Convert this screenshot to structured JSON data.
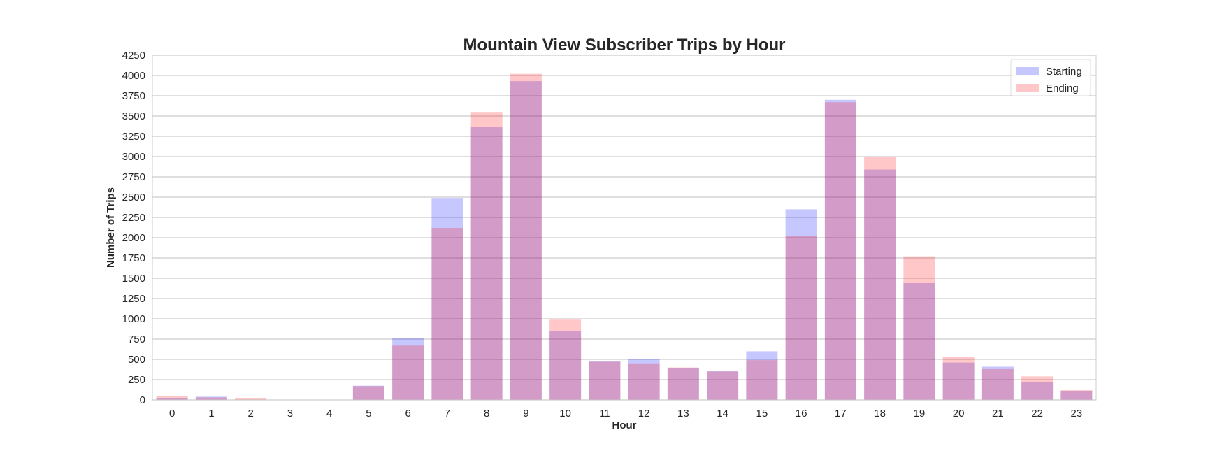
{
  "chart_data": {
    "type": "bar",
    "title": "Mountain View Subscriber Trips by Hour",
    "xlabel": "Hour",
    "ylabel": "Number of Trips",
    "categories": [
      "0",
      "1",
      "2",
      "3",
      "4",
      "5",
      "6",
      "7",
      "8",
      "9",
      "10",
      "11",
      "12",
      "13",
      "14",
      "15",
      "16",
      "17",
      "18",
      "19",
      "20",
      "21",
      "22",
      "23"
    ],
    "ylim": [
      0,
      4250
    ],
    "yticks": [
      "0",
      "250",
      "500",
      "750",
      "1000",
      "1250",
      "1500",
      "1750",
      "2000",
      "2250",
      "2500",
      "2750",
      "3000",
      "3250",
      "3500",
      "3750",
      "4000",
      "4250"
    ],
    "grid": true,
    "legend_position": "top-right",
    "series": [
      {
        "name": "Starting",
        "color": "#0000ff",
        "values": [
          20,
          40,
          5,
          2,
          3,
          175,
          760,
          2490,
          3370,
          3930,
          850,
          480,
          500,
          390,
          360,
          600,
          2350,
          3700,
          2840,
          1440,
          460,
          410,
          220,
          110
        ]
      },
      {
        "name": "Ending",
        "color": "#ff0000",
        "values": [
          50,
          30,
          20,
          3,
          4,
          170,
          670,
          2120,
          3550,
          4020,
          990,
          470,
          450,
          400,
          350,
          490,
          2020,
          3670,
          3000,
          1770,
          530,
          380,
          290,
          120
        ]
      }
    ]
  }
}
